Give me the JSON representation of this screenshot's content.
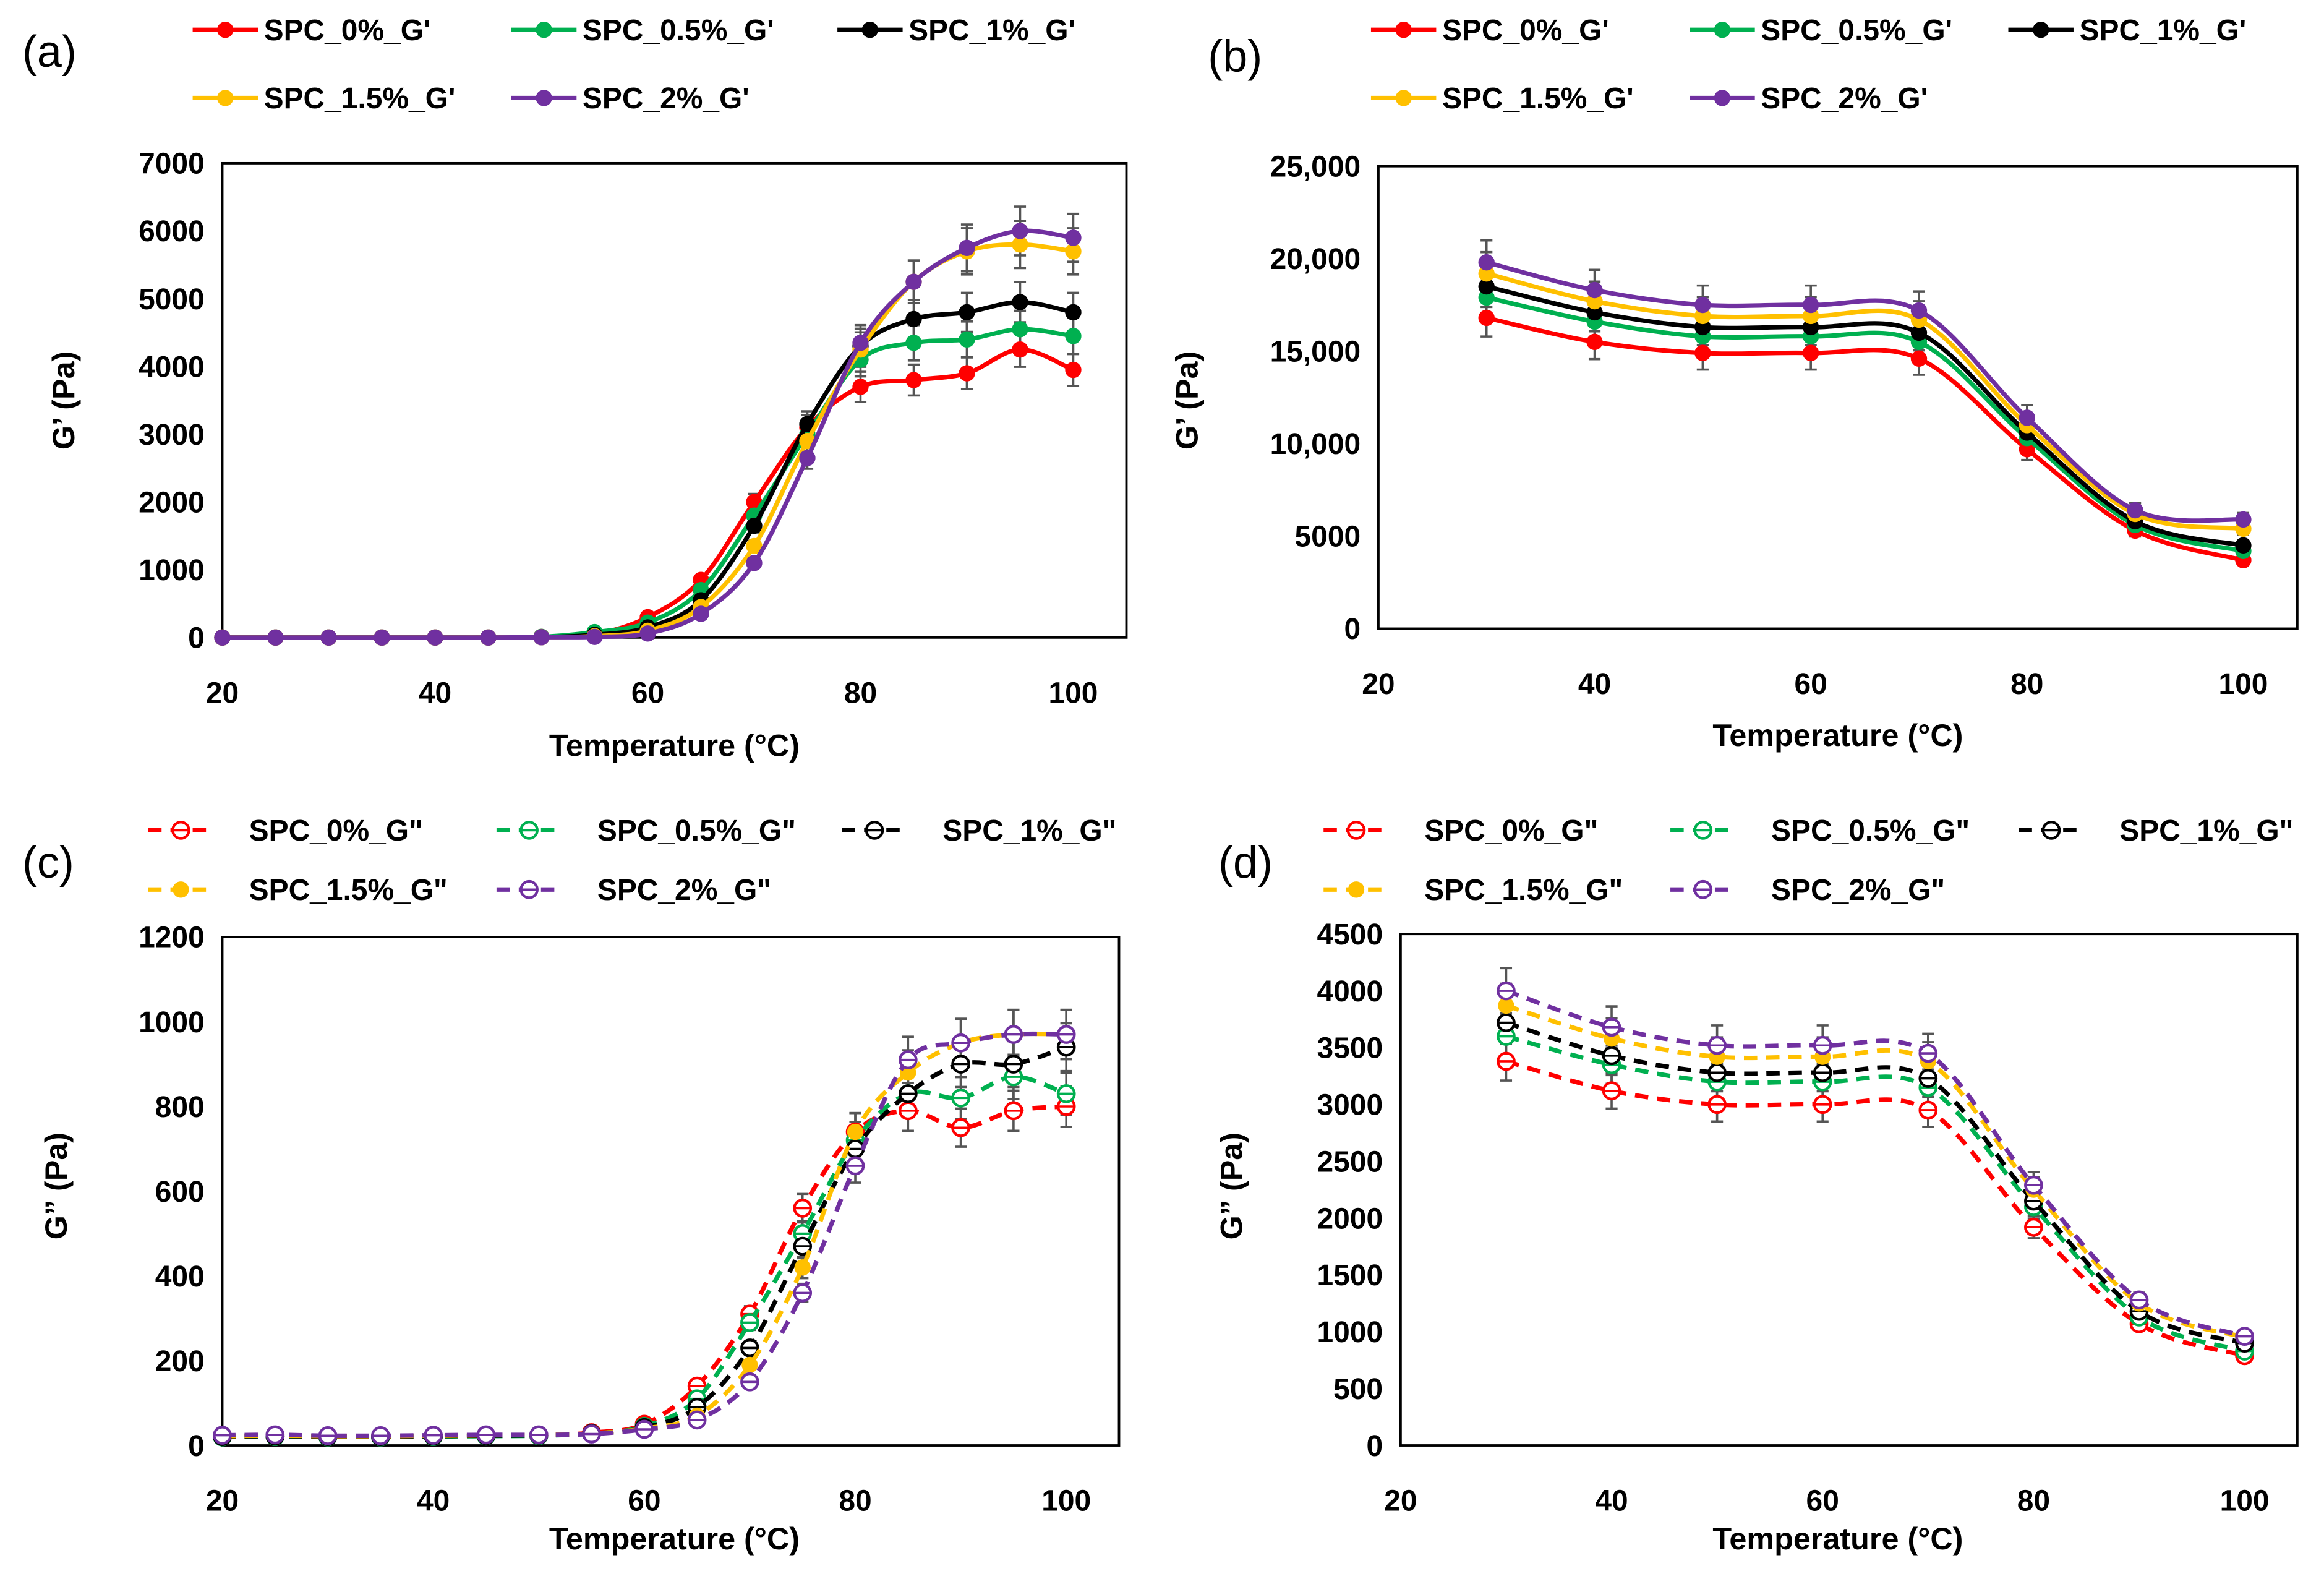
{
  "colors": {
    "SPC_0%": "#ff0000",
    "SPC_0.5%": "#00b050",
    "SPC_1%": "#000000",
    "SPC_1.5%": "#ffc000",
    "SPC_2%": "#7030a0",
    "error_bar": "#555555"
  },
  "chart_data": [
    {
      "panel_label": "(a)",
      "type": "line",
      "line_style": "solid",
      "xlabel": "Temperature (°C)",
      "ylabel": "G’ (Pa)",
      "xlim": [
        20,
        105
      ],
      "ylim": [
        0,
        7000
      ],
      "xticks": [
        "20",
        "40",
        "60",
        "80",
        "100"
      ],
      "xtick_values": [
        20,
        40,
        60,
        80,
        100
      ],
      "yticks": [
        "0",
        "1000",
        "2000",
        "3000",
        "4000",
        "5000",
        "6000",
        "7000"
      ],
      "ytick_values": [
        0,
        1000,
        2000,
        3000,
        4000,
        5000,
        6000,
        7000
      ],
      "x": [
        20,
        25,
        30,
        35,
        40,
        45,
        50,
        55,
        60,
        65,
        70,
        75,
        80,
        85,
        90,
        95,
        100
      ],
      "error_fraction": 0.06,
      "series": [
        {
          "name": "SPC_0%_G'",
          "key": "SPC_0%",
          "marker": "filled",
          "values": [
            0,
            0,
            0,
            0,
            0,
            0,
            10,
            50,
            300,
            850,
            2000,
            3100,
            3700,
            3800,
            3900,
            4250,
            3950
          ]
        },
        {
          "name": "SPC_0.5%_G'",
          "key": "SPC_0.5%",
          "marker": "filled",
          "values": [
            0,
            0,
            0,
            0,
            0,
            0,
            10,
            80,
            220,
            700,
            1800,
            3000,
            4100,
            4350,
            4400,
            4550,
            4450
          ]
        },
        {
          "name": "SPC_1%_G'",
          "key": "SPC_1%",
          "marker": "filled",
          "values": [
            0,
            0,
            0,
            0,
            0,
            0,
            5,
            40,
            150,
            550,
            1650,
            3150,
            4300,
            4700,
            4800,
            4950,
            4800
          ]
        },
        {
          "name": "SPC_1.5%_G'",
          "key": "SPC_1.5%",
          "marker": "filled",
          "values": [
            0,
            0,
            0,
            0,
            0,
            0,
            5,
            20,
            100,
            450,
            1350,
            2900,
            4250,
            5250,
            5700,
            5800,
            5700
          ]
        },
        {
          "name": "SPC_2%_G'",
          "key": "SPC_2%",
          "marker": "filled",
          "values": [
            0,
            0,
            0,
            0,
            0,
            0,
            5,
            10,
            60,
            350,
            1100,
            2650,
            4350,
            5250,
            5750,
            6000,
            5900
          ]
        }
      ]
    },
    {
      "panel_label": "(b)",
      "type": "line",
      "line_style": "solid",
      "xlabel": "Temperature (°C)",
      "ylabel": "G’ (Pa)",
      "xlim": [
        20,
        105
      ],
      "ylim": [
        0,
        25000
      ],
      "xticks": [
        "20",
        "40",
        "60",
        "80",
        "100"
      ],
      "xtick_values": [
        20,
        40,
        60,
        80,
        100
      ],
      "yticks": [
        "0",
        "5000",
        "10,000",
        "15,000",
        "20,000",
        "25,000"
      ],
      "ytick_values": [
        0,
        5000,
        10000,
        15000,
        20000,
        25000
      ],
      "x": [
        30,
        40,
        50,
        60,
        70,
        80,
        90,
        100
      ],
      "error_fraction": 0.06,
      "series": [
        {
          "name": "SPC_0%_G'",
          "key": "SPC_0%",
          "marker": "filled",
          "values": [
            16800,
            15500,
            14900,
            14900,
            14600,
            9700,
            5300,
            3700
          ]
        },
        {
          "name": "SPC_0.5%_G'",
          "key": "SPC_0.5%",
          "marker": "filled",
          "values": [
            17900,
            16600,
            15800,
            15800,
            15500,
            10300,
            5600,
            4200
          ]
        },
        {
          "name": "SPC_1%_G'",
          "key": "SPC_1%",
          "marker": "filled",
          "values": [
            18500,
            17100,
            16300,
            16300,
            16000,
            10600,
            5800,
            4500
          ]
        },
        {
          "name": "SPC_1.5%_G'",
          "key": "SPC_1.5%",
          "marker": "filled",
          "values": [
            19200,
            17700,
            16900,
            16900,
            16700,
            11000,
            6200,
            5400
          ]
        },
        {
          "name": "SPC_2%_G'",
          "key": "SPC_2%",
          "marker": "filled",
          "values": [
            19800,
            18300,
            17500,
            17500,
            17200,
            11400,
            6400,
            5900
          ]
        }
      ]
    },
    {
      "panel_label": "(c)",
      "type": "line",
      "line_style": "dashed",
      "xlabel": "Temperature (°C)",
      "ylabel": "G” (Pa)",
      "xlim": [
        20,
        105
      ],
      "ylim": [
        0,
        1200
      ],
      "xticks": [
        "20",
        "40",
        "60",
        "80",
        "100"
      ],
      "xtick_values": [
        20,
        40,
        60,
        80,
        100
      ],
      "yticks": [
        "0",
        "200",
        "400",
        "600",
        "800",
        "1000",
        "1200"
      ],
      "ytick_values": [
        0,
        200,
        400,
        600,
        800,
        1000,
        1200
      ],
      "x": [
        20,
        25,
        30,
        35,
        40,
        45,
        50,
        55,
        60,
        65,
        70,
        75,
        80,
        85,
        90,
        95,
        100
      ],
      "error_fraction": 0.06,
      "series": [
        {
          "name": "SPC_0%_G\"",
          "key": "SPC_0%",
          "marker": "open",
          "values": [
            22,
            22,
            21,
            21,
            22,
            23,
            24,
            30,
            50,
            140,
            310,
            560,
            740,
            790,
            750,
            790,
            800
          ]
        },
        {
          "name": "SPC_0.5%_G\"",
          "key": "SPC_0.5%",
          "marker": "open",
          "values": [
            20,
            21,
            20,
            20,
            21,
            22,
            23,
            28,
            45,
            110,
            290,
            500,
            720,
            830,
            820,
            870,
            830
          ]
        },
        {
          "name": "SPC_1%_G\"",
          "key": "SPC_1%",
          "marker": "open",
          "values": [
            21,
            22,
            21,
            21,
            22,
            23,
            24,
            28,
            42,
            90,
            230,
            470,
            700,
            830,
            900,
            900,
            940
          ]
        },
        {
          "name": "SPC_1.5%_G\"",
          "key": "SPC_1.5%",
          "marker": "filled",
          "values": [
            22,
            23,
            22,
            22,
            23,
            24,
            25,
            28,
            40,
            70,
            190,
            420,
            740,
            880,
            950,
            970,
            970
          ]
        },
        {
          "name": "SPC_2%_G\"",
          "key": "SPC_2%",
          "marker": "open",
          "values": [
            24,
            25,
            23,
            23,
            24,
            25,
            25,
            27,
            38,
            60,
            150,
            360,
            660,
            910,
            950,
            970,
            970
          ]
        }
      ]
    },
    {
      "panel_label": "(d)",
      "type": "line",
      "line_style": "dashed",
      "xlabel": "Temperature (°C)",
      "ylabel": "G” (Pa)",
      "xlim": [
        20,
        105
      ],
      "ylim": [
        0,
        4500
      ],
      "xticks": [
        "20",
        "40",
        "60",
        "80",
        "100"
      ],
      "xtick_values": [
        20,
        40,
        60,
        80,
        100
      ],
      "yticks": [
        "0",
        "500",
        "1000",
        "1500",
        "2000",
        "2500",
        "3000",
        "3500",
        "4000",
        "4500"
      ],
      "ytick_values": [
        0,
        500,
        1000,
        1500,
        2000,
        2500,
        3000,
        3500,
        4000,
        4500
      ],
      "x": [
        30,
        40,
        50,
        60,
        70,
        80,
        90,
        100
      ],
      "error_fraction": 0.05,
      "series": [
        {
          "name": "SPC_0%_G\"",
          "key": "SPC_0%",
          "marker": "open",
          "values": [
            3380,
            3120,
            3000,
            3000,
            2950,
            1920,
            1070,
            790
          ]
        },
        {
          "name": "SPC_0.5%_G\"",
          "key": "SPC_0.5%",
          "marker": "open",
          "values": [
            3600,
            3350,
            3200,
            3200,
            3150,
            2100,
            1130,
            830
          ]
        },
        {
          "name": "SPC_1%_G\"",
          "key": "SPC_1%",
          "marker": "open",
          "values": [
            3720,
            3430,
            3280,
            3280,
            3230,
            2150,
            1180,
            900
          ]
        },
        {
          "name": "SPC_1.5%_G\"",
          "key": "SPC_1.5%",
          "marker": "filled",
          "values": [
            3870,
            3580,
            3420,
            3420,
            3380,
            2250,
            1250,
            950
          ]
        },
        {
          "name": "SPC_2%_G\"",
          "key": "SPC_2%",
          "marker": "open",
          "values": [
            4000,
            3680,
            3520,
            3520,
            3450,
            2290,
            1280,
            960
          ]
        }
      ]
    }
  ]
}
